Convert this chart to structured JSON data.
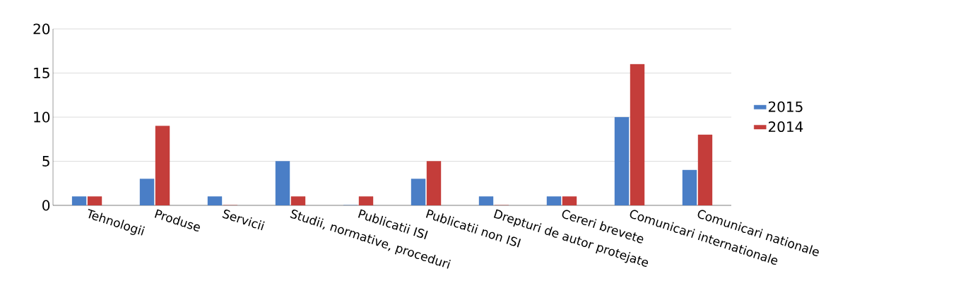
{
  "chart_data": {
    "type": "bar",
    "categories": [
      "Tehnologii",
      "Produse",
      "Servicii",
      "Studii, normative, proceduri",
      "Publicatii ISI",
      "Publicatii non ISI",
      "Drepturi de autor protejate",
      "Cereri brevete",
      "Comunicari internationale",
      "Comunicari nationale"
    ],
    "series": [
      {
        "name": "2015",
        "color": "#4a7ec6",
        "values": [
          1,
          3,
          1,
          5,
          0,
          3,
          1,
          1,
          10,
          4
        ]
      },
      {
        "name": "2014",
        "color": "#c43d3a",
        "values": [
          1,
          9,
          0,
          1,
          1,
          5,
          0,
          1,
          16,
          8
        ]
      }
    ],
    "ylim": [
      0,
      20
    ],
    "yticks": [
      0,
      5,
      10,
      15,
      20
    ],
    "grid": "y",
    "legend": "right"
  }
}
